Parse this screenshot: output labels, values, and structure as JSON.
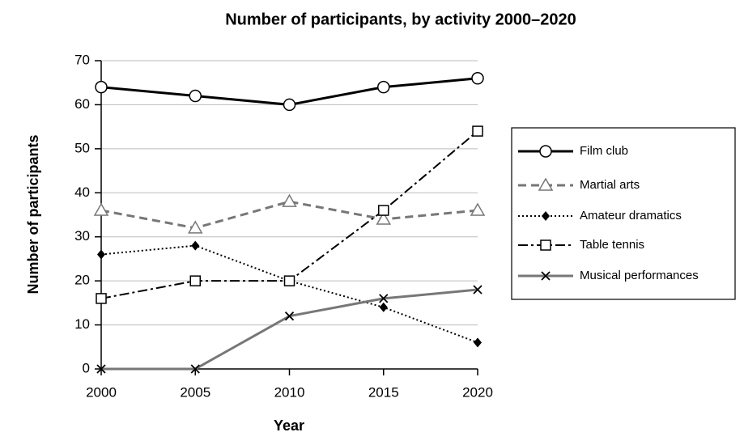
{
  "chart_data": {
    "type": "line",
    "title": "Number of participants, by activity 2000–2020",
    "x_label": "Year",
    "y_label": "Number of participants",
    "x": [
      2000,
      2005,
      2010,
      2015,
      2020
    ],
    "xlim": [
      2000,
      2020
    ],
    "xticks": [
      2000,
      2005,
      2010,
      2015,
      2020
    ],
    "ylim": [
      0,
      70
    ],
    "yticks": [
      0,
      10,
      20,
      30,
      40,
      50,
      60,
      70
    ],
    "grid": true,
    "legend": "right",
    "series": [
      {
        "name": "Film club",
        "color": "#000000",
        "line_style": "solid",
        "marker": "circle",
        "values": [
          64,
          62,
          60,
          64,
          66
        ]
      },
      {
        "name": "Martial arts",
        "color": "#777777",
        "line_style": "dashed",
        "marker": "triangle",
        "values": [
          36,
          32,
          38,
          34,
          36
        ]
      },
      {
        "name": "Amateur dramatics",
        "color": "#000000",
        "line_style": "dotted",
        "marker": "diamond",
        "values": [
          26,
          28,
          20,
          14,
          6
        ]
      },
      {
        "name": "Table tennis",
        "color": "#000000",
        "line_style": "dashdot",
        "marker": "square",
        "values": [
          16,
          20,
          20,
          36,
          54
        ]
      },
      {
        "name": "Musical performances",
        "color": "#777777",
        "line_style": "solid",
        "marker": "x",
        "values": [
          0,
          0,
          12,
          16,
          18
        ]
      }
    ]
  }
}
